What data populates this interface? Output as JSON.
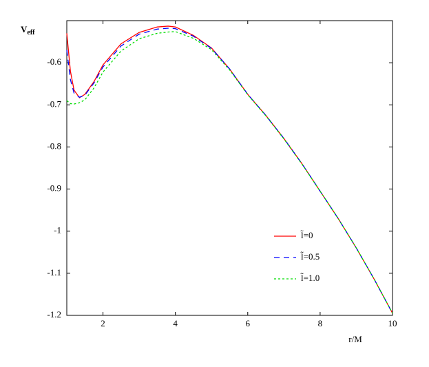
{
  "chart_data": {
    "type": "line",
    "y_label": "V",
    "y_label_sub": "eff",
    "x_label": "r/M",
    "x": [
      1,
      1.1,
      1.2,
      1.35,
      1.5,
      1.75,
      2,
      2.5,
      3,
      3.5,
      3.8,
      4,
      4.5,
      5,
      5.5,
      6,
      6.5,
      7,
      7.5,
      8,
      8.5,
      9,
      9.5,
      10
    ],
    "series": [
      {
        "name": "l̃=0",
        "color": "#ff0000",
        "dash": "none",
        "values": [
          -0.53,
          -0.62,
          -0.665,
          -0.683,
          -0.675,
          -0.645,
          -0.605,
          -0.555,
          -0.528,
          -0.515,
          -0.513,
          -0.515,
          -0.535,
          -0.565,
          -0.615,
          -0.675,
          -0.725,
          -0.78,
          -0.84,
          -0.905,
          -0.97,
          -1.04,
          -1.115,
          -1.195
        ]
      },
      {
        "name": "l̃=0.5",
        "color": "#0000ff",
        "dash": "8,6",
        "values": [
          -0.57,
          -0.64,
          -0.672,
          -0.682,
          -0.677,
          -0.648,
          -0.61,
          -0.56,
          -0.532,
          -0.52,
          -0.518,
          -0.519,
          -0.537,
          -0.566,
          -0.615,
          -0.675,
          -0.725,
          -0.78,
          -0.84,
          -0.905,
          -0.97,
          -1.04,
          -1.115,
          -1.195
        ]
      },
      {
        "name": "l̃=1.0",
        "color": "#00dd00",
        "dash": "3,3",
        "values": [
          -0.69,
          -0.697,
          -0.698,
          -0.695,
          -0.688,
          -0.66,
          -0.622,
          -0.572,
          -0.543,
          -0.53,
          -0.527,
          -0.526,
          -0.542,
          -0.569,
          -0.617,
          -0.676,
          -0.726,
          -0.781,
          -0.841,
          -0.905,
          -0.97,
          -1.04,
          -1.115,
          -1.195
        ]
      }
    ],
    "xlim": [
      1,
      10
    ],
    "ylim": [
      -1.2,
      -0.5
    ],
    "xticks": [
      2,
      4,
      6,
      8,
      10
    ],
    "yticks": [
      -0.6,
      -0.7,
      -0.8,
      -0.9,
      -1,
      -1.1,
      -1.2
    ]
  }
}
